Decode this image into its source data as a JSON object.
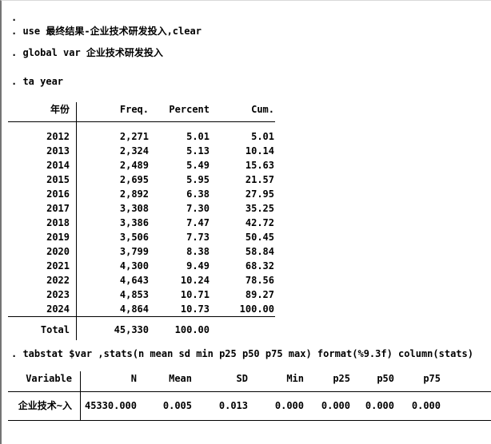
{
  "console": {
    "prompt": ".",
    "cmd_use": ". use 最终结果-企业技术研发投入,clear",
    "cmd_global": ". global var 企业技术研发投入",
    "cmd_ta": ". ta year",
    "cmd_tabstat": ". tabstat $var ,stats(n mean sd min p25 p50 p75 max) format(%9.3f) column(stats)"
  },
  "freq_table": {
    "headers": {
      "year": "年份",
      "freq": "Freq.",
      "percent": "Percent",
      "cum": "Cum."
    },
    "rows": [
      {
        "year": "2012",
        "freq": "2,271",
        "percent": "5.01",
        "cum": "5.01"
      },
      {
        "year": "2013",
        "freq": "2,324",
        "percent": "5.13",
        "cum": "10.14"
      },
      {
        "year": "2014",
        "freq": "2,489",
        "percent": "5.49",
        "cum": "15.63"
      },
      {
        "year": "2015",
        "freq": "2,695",
        "percent": "5.95",
        "cum": "21.57"
      },
      {
        "year": "2016",
        "freq": "2,892",
        "percent": "6.38",
        "cum": "27.95"
      },
      {
        "year": "2017",
        "freq": "3,308",
        "percent": "7.30",
        "cum": "35.25"
      },
      {
        "year": "2018",
        "freq": "3,386",
        "percent": "7.47",
        "cum": "42.72"
      },
      {
        "year": "2019",
        "freq": "3,506",
        "percent": "7.73",
        "cum": "50.45"
      },
      {
        "year": "2020",
        "freq": "3,799",
        "percent": "8.38",
        "cum": "58.84"
      },
      {
        "year": "2021",
        "freq": "4,300",
        "percent": "9.49",
        "cum": "68.32"
      },
      {
        "year": "2022",
        "freq": "4,643",
        "percent": "10.24",
        "cum": "78.56"
      },
      {
        "year": "2023",
        "freq": "4,853",
        "percent": "10.71",
        "cum": "89.27"
      },
      {
        "year": "2024",
        "freq": "4,864",
        "percent": "10.73",
        "cum": "100.00"
      }
    ],
    "total": {
      "label": "Total",
      "freq": "45,330",
      "percent": "100.00",
      "cum": ""
    }
  },
  "stats_table": {
    "headers": {
      "variable": "Variable",
      "n": "N",
      "mean": "Mean",
      "sd": "SD",
      "min": "Min",
      "p25": "p25",
      "p50": "p50",
      "p75": "p75"
    },
    "row": {
      "variable": "企业技术~入",
      "n": "45330.000",
      "mean": "0.005",
      "sd": "0.013",
      "min": "0.000",
      "p25": "0.000",
      "p50": "0.000",
      "p75": "0.000"
    }
  },
  "colors": {
    "text": "#000000",
    "table_line": "#000000",
    "window_border": "#747474"
  }
}
